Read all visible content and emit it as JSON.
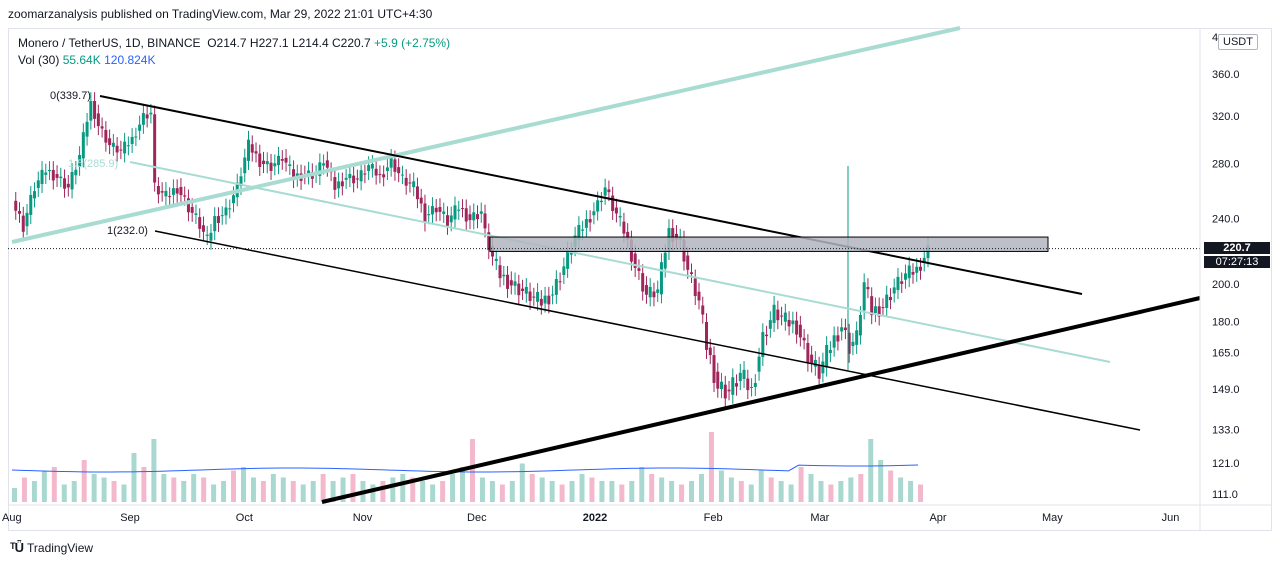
{
  "header": {
    "published": "zoomarzanalysis published on TradingView.com, Mar 29, 2022 21:01 UTC+4:30"
  },
  "legend": {
    "symbol": "Monero / TetherUS, 1D, BINANCE",
    "o": "O214.7",
    "h": "H227.1",
    "l": "L214.4",
    "c": "C220.7",
    "change": "+5.9 (+2.75%)",
    "vol_label": "Vol (30)",
    "vol_value": "55.64K",
    "vol_ma": "120.824K"
  },
  "currency": "USDT",
  "price_tag": {
    "price": "220.7",
    "countdown": "07:27:13"
  },
  "footer": {
    "brand": "TradingView"
  },
  "chart_data": {
    "type": "candlestick",
    "y_scale": "log",
    "y_ticks": [
      111.0,
      121.0,
      133.0,
      149.0,
      165.0,
      180.0,
      200.0,
      240.0,
      280.0,
      320.0,
      360.0
    ],
    "y_top_label": "4",
    "x_ticks": [
      {
        "label": "Aug",
        "day": 0
      },
      {
        "label": "Sep",
        "day": 31
      },
      {
        "label": "Oct",
        "day": 61
      },
      {
        "label": "Nov",
        "day": 92
      },
      {
        "label": "Dec",
        "day": 122
      },
      {
        "label": "2022",
        "day": 153
      },
      {
        "label": "Feb",
        "day": 184
      },
      {
        "label": "Mar",
        "day": 212
      },
      {
        "label": "Apr",
        "day": 243
      },
      {
        "label": "May",
        "day": 273
      },
      {
        "label": "Jun",
        "day": 304
      }
    ],
    "ohlc_close_path": [
      [
        0,
        252
      ],
      [
        3,
        235
      ],
      [
        6,
        262
      ],
      [
        9,
        275
      ],
      [
        12,
        270
      ],
      [
        15,
        262
      ],
      [
        18,
        286
      ],
      [
        21,
        332
      ],
      [
        23,
        312
      ],
      [
        26,
        295
      ],
      [
        29,
        290
      ],
      [
        32,
        300
      ],
      [
        35,
        320
      ],
      [
        37,
        323
      ],
      [
        38,
        262
      ],
      [
        41,
        255
      ],
      [
        44,
        262
      ],
      [
        47,
        248
      ],
      [
        50,
        236
      ],
      [
        52,
        225
      ],
      [
        54,
        240
      ],
      [
        57,
        245
      ],
      [
        60,
        262
      ],
      [
        63,
        295
      ],
      [
        66,
        282
      ],
      [
        69,
        278
      ],
      [
        72,
        285
      ],
      [
        75,
        270
      ],
      [
        78,
        272
      ],
      [
        81,
        272
      ],
      [
        83,
        283
      ],
      [
        86,
        262
      ],
      [
        89,
        270
      ],
      [
        92,
        268
      ],
      [
        95,
        278
      ],
      [
        98,
        270
      ],
      [
        101,
        282
      ],
      [
        104,
        268
      ],
      [
        107,
        262
      ],
      [
        110,
        242
      ],
      [
        113,
        248
      ],
      [
        116,
        238
      ],
      [
        119,
        248
      ],
      [
        122,
        240
      ],
      [
        125,
        245
      ],
      [
        126,
        230
      ],
      [
        128,
        215
      ],
      [
        130,
        205
      ],
      [
        133,
        200
      ],
      [
        136,
        196
      ],
      [
        139,
        192
      ],
      [
        141,
        190
      ],
      [
        144,
        195
      ],
      [
        147,
        210
      ],
      [
        150,
        228
      ],
      [
        153,
        238
      ],
      [
        156,
        250
      ],
      [
        158,
        262
      ],
      [
        160,
        248
      ],
      [
        163,
        232
      ],
      [
        166,
        210
      ],
      [
        169,
        194
      ],
      [
        172,
        196
      ],
      [
        175,
        232
      ],
      [
        178,
        225
      ],
      [
        180,
        208
      ],
      [
        183,
        190
      ],
      [
        185,
        168
      ],
      [
        188,
        150
      ],
      [
        191,
        148
      ],
      [
        194,
        155
      ],
      [
        197,
        148
      ],
      [
        200,
        172
      ],
      [
        203,
        185
      ],
      [
        206,
        180
      ],
      [
        209,
        178
      ],
      [
        211,
        168
      ],
      [
        213,
        160
      ],
      [
        215,
        156
      ],
      [
        218,
        168
      ],
      [
        221,
        178
      ],
      [
        223,
        168
      ],
      [
        225,
        172
      ],
      [
        227,
        200
      ],
      [
        229,
        185
      ],
      [
        232,
        188
      ],
      [
        235,
        198
      ],
      [
        238,
        205
      ],
      [
        241,
        208
      ],
      [
        244,
        220
      ]
    ],
    "volume_bars_relative": [
      0.2,
      0.35,
      0.3,
      0.45,
      0.5,
      0.25,
      0.3,
      0.6,
      0.4,
      0.35,
      0.3,
      0.25,
      0.7,
      0.5,
      0.9,
      0.4,
      0.35,
      0.3,
      0.4,
      0.35,
      0.25,
      0.3,
      0.45,
      0.5,
      0.35,
      0.3,
      0.4,
      0.35,
      0.3,
      0.25,
      0.3,
      0.4,
      0.3,
      0.35,
      0.4,
      0.3,
      0.25,
      0.3,
      0.35,
      0.4,
      0.35,
      0.3,
      0.25,
      0.3,
      0.4,
      0.5,
      0.9,
      0.35,
      0.3,
      0.25,
      0.3,
      0.55,
      0.4,
      0.35,
      0.3,
      0.25,
      0.3,
      0.4,
      0.35,
      0.3,
      0.3,
      0.25,
      0.3,
      0.5,
      0.4,
      0.35,
      0.3,
      0.25,
      0.3,
      0.4,
      1.0,
      0.45,
      0.35,
      0.3,
      0.25,
      0.45,
      0.35,
      0.3,
      0.25,
      0.5,
      0.4,
      0.3,
      0.25,
      0.3,
      0.35,
      0.4,
      0.9,
      0.6,
      0.45,
      0.35,
      0.3,
      0.25
    ],
    "annotations": [
      {
        "label": "0(339.7)",
        "price": 339.7
      },
      {
        "label": "1(232.0)",
        "price": 232.0
      },
      {
        "label": "1.5(285.9)",
        "price": 285.9
      }
    ],
    "resistance_zone": [
      219,
      228
    ]
  }
}
